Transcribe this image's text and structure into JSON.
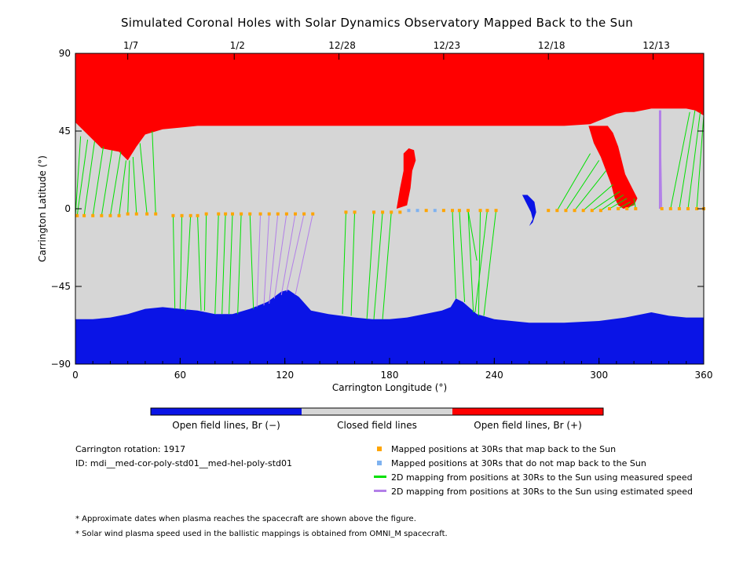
{
  "title": "Simulated Coronal Holes with Solar Dynamics Observatory Mapped Back to the Sun",
  "colors": {
    "open_negative": "#0a14e6",
    "closed": "#d6d6d6",
    "open_positive": "#ff0000",
    "mapped_ok": "#ffa500",
    "mapped_no": "#7fb2f0",
    "measured_line": "#00e000",
    "estimated_line": "#b27fe8"
  },
  "colorbar": {
    "labels": [
      "Open field lines, Br (−)",
      "Closed field lines",
      "Open field lines, Br (+)"
    ]
  },
  "info": {
    "rotation": "Carrington rotation: 1917",
    "id": "ID: mdi__med-cor-poly-std01__med-hel-poly-std01"
  },
  "legend": {
    "mapped_ok": "Mapped positions at 30Rs that map back to the Sun",
    "mapped_no": "Mapped positions at 30Rs that do not map back to the Sun",
    "measured": "2D mapping from positions at 30Rs to the Sun using measured speed",
    "estimated": "2D mapping from positions at 30Rs to the Sun using estimated speed"
  },
  "footnotes": [
    "* Approximate dates when plasma reaches the spacecraft are shown above the figure.",
    "* Solar wind plasma speed used in the ballistic mappings is obtained from OMNI_M spacecraft."
  ],
  "chart_data": {
    "type": "map",
    "xlabel": "Carrington Longitude (°)",
    "ylabel": "Carrington Latitude (°)",
    "xlim": [
      0,
      360
    ],
    "ylim": [
      -90,
      90
    ],
    "xticks": [
      0,
      60,
      120,
      180,
      240,
      300,
      360
    ],
    "yticks": [
      -90,
      -45,
      0,
      45,
      90
    ],
    "date_ticks": [
      {
        "lon": 30,
        "label": "1/7"
      },
      {
        "lon": 91,
        "label": "1/2"
      },
      {
        "lon": 151,
        "label": "12/28"
      },
      {
        "lon": 211,
        "label": "12/23"
      },
      {
        "lon": 271,
        "label": "12/18"
      },
      {
        "lon": 331,
        "label": "12/13"
      }
    ],
    "north_boundary": [
      [
        0,
        50
      ],
      [
        5,
        45
      ],
      [
        10,
        40
      ],
      [
        15,
        35
      ],
      [
        20,
        34
      ],
      [
        25,
        33
      ],
      [
        30,
        28
      ],
      [
        35,
        36
      ],
      [
        40,
        43
      ],
      [
        50,
        46
      ],
      [
        60,
        47
      ],
      [
        70,
        48
      ],
      [
        80,
        48
      ],
      [
        100,
        48
      ],
      [
        120,
        48
      ],
      [
        140,
        48
      ],
      [
        160,
        48
      ],
      [
        180,
        48
      ],
      [
        200,
        48
      ],
      [
        220,
        48
      ],
      [
        240,
        48
      ],
      [
        260,
        48
      ],
      [
        280,
        48
      ],
      [
        295,
        49
      ],
      [
        300,
        51
      ],
      [
        305,
        53
      ],
      [
        310,
        55
      ],
      [
        315,
        56
      ],
      [
        320,
        56
      ],
      [
        325,
        57
      ],
      [
        330,
        58
      ],
      [
        340,
        58
      ],
      [
        350,
        58
      ],
      [
        355,
        57
      ],
      [
        360,
        54
      ]
    ],
    "south_boundary": [
      [
        0,
        -64
      ],
      [
        10,
        -64
      ],
      [
        20,
        -63
      ],
      [
        30,
        -61
      ],
      [
        40,
        -58
      ],
      [
        50,
        -57
      ],
      [
        60,
        -58
      ],
      [
        70,
        -59
      ],
      [
        80,
        -61
      ],
      [
        90,
        -61
      ],
      [
        100,
        -58
      ],
      [
        110,
        -54
      ],
      [
        118,
        -48
      ],
      [
        122,
        -47
      ],
      [
        128,
        -51
      ],
      [
        135,
        -59
      ],
      [
        145,
        -61
      ],
      [
        160,
        -63
      ],
      [
        170,
        -64
      ],
      [
        180,
        -64
      ],
      [
        190,
        -63
      ],
      [
        200,
        -61
      ],
      [
        210,
        -59
      ],
      [
        215,
        -57
      ],
      [
        218,
        -52
      ],
      [
        222,
        -54
      ],
      [
        230,
        -61
      ],
      [
        240,
        -64
      ],
      [
        260,
        -66
      ],
      [
        280,
        -66
      ],
      [
        300,
        -65
      ],
      [
        315,
        -63
      ],
      [
        325,
        -61
      ],
      [
        330,
        -60
      ],
      [
        340,
        -62
      ],
      [
        350,
        -63
      ],
      [
        360,
        -63
      ]
    ],
    "open_positive_patches": [
      {
        "name": "cusp-180",
        "polygon": [
          [
            184,
            0
          ],
          [
            186,
            12
          ],
          [
            188,
            22
          ],
          [
            188,
            32
          ],
          [
            191,
            35
          ],
          [
            194,
            34
          ],
          [
            195,
            28
          ],
          [
            193,
            22
          ],
          [
            192,
            12
          ],
          [
            190,
            2
          ]
        ]
      },
      {
        "name": "tongue-300",
        "polygon": [
          [
            294,
            48
          ],
          [
            297,
            38
          ],
          [
            301,
            30
          ],
          [
            304,
            22
          ],
          [
            307,
            14
          ],
          [
            309,
            6
          ],
          [
            311,
            2
          ],
          [
            314,
            0
          ],
          [
            320,
            2
          ],
          [
            322,
            6
          ],
          [
            319,
            12
          ],
          [
            315,
            20
          ],
          [
            313,
            28
          ],
          [
            311,
            36
          ],
          [
            308,
            44
          ],
          [
            305,
            48
          ]
        ]
      }
    ],
    "open_negative_patches": [
      {
        "name": "sliver-257",
        "polygon": [
          [
            256,
            8
          ],
          [
            258,
            4
          ],
          [
            261,
            -2
          ],
          [
            262,
            -6
          ],
          [
            260,
            -10
          ],
          [
            258,
            -12
          ],
          [
            262,
            -8
          ],
          [
            264,
            -2
          ],
          [
            263,
            4
          ],
          [
            259,
            8
          ]
        ]
      }
    ],
    "mapped_points": [
      {
        "lon": 1,
        "lat": -4,
        "maps": true
      },
      {
        "lon": 5,
        "lat": -4,
        "maps": true
      },
      {
        "lon": 10,
        "lat": -4,
        "maps": true
      },
      {
        "lon": 15,
        "lat": -4,
        "maps": true
      },
      {
        "lon": 20,
        "lat": -4,
        "maps": true
      },
      {
        "lon": 25,
        "lat": -4,
        "maps": true
      },
      {
        "lon": 30,
        "lat": -3,
        "maps": true
      },
      {
        "lon": 35,
        "lat": -3,
        "maps": true
      },
      {
        "lon": 41,
        "lat": -3,
        "maps": true
      },
      {
        "lon": 46,
        "lat": -3,
        "maps": true
      },
      {
        "lon": 56,
        "lat": -4,
        "maps": true
      },
      {
        "lon": 61,
        "lat": -4,
        "maps": true
      },
      {
        "lon": 66,
        "lat": -4,
        "maps": true
      },
      {
        "lon": 70,
        "lat": -4,
        "maps": true
      },
      {
        "lon": 75,
        "lat": -3,
        "maps": true
      },
      {
        "lon": 82,
        "lat": -3,
        "maps": true
      },
      {
        "lon": 86,
        "lat": -3,
        "maps": true
      },
      {
        "lon": 90,
        "lat": -3,
        "maps": true
      },
      {
        "lon": 95,
        "lat": -3,
        "maps": true
      },
      {
        "lon": 100,
        "lat": -3,
        "maps": true
      },
      {
        "lon": 106,
        "lat": -3,
        "maps": true
      },
      {
        "lon": 111,
        "lat": -3,
        "maps": true
      },
      {
        "lon": 116,
        "lat": -3,
        "maps": true
      },
      {
        "lon": 121,
        "lat": -3,
        "maps": true
      },
      {
        "lon": 126,
        "lat": -3,
        "maps": true
      },
      {
        "lon": 131,
        "lat": -3,
        "maps": true
      },
      {
        "lon": 136,
        "lat": -3,
        "maps": true
      },
      {
        "lon": 155,
        "lat": -2,
        "maps": true
      },
      {
        "lon": 160,
        "lat": -2,
        "maps": true
      },
      {
        "lon": 171,
        "lat": -2,
        "maps": true
      },
      {
        "lon": 176,
        "lat": -2,
        "maps": true
      },
      {
        "lon": 181,
        "lat": -2,
        "maps": true
      },
      {
        "lon": 186,
        "lat": -2,
        "maps": true
      },
      {
        "lon": 191,
        "lat": -1,
        "maps": false
      },
      {
        "lon": 196,
        "lat": -1,
        "maps": false
      },
      {
        "lon": 201,
        "lat": -1,
        "maps": true
      },
      {
        "lon": 206,
        "lat": -1,
        "maps": false
      },
      {
        "lon": 211,
        "lat": -1,
        "maps": true
      },
      {
        "lon": 216,
        "lat": -1,
        "maps": true
      },
      {
        "lon": 220,
        "lat": -1,
        "maps": true
      },
      {
        "lon": 225,
        "lat": -1,
        "maps": true
      },
      {
        "lon": 232,
        "lat": -1,
        "maps": true
      },
      {
        "lon": 236,
        "lat": -1,
        "maps": true
      },
      {
        "lon": 241,
        "lat": -1,
        "maps": true
      },
      {
        "lon": 271,
        "lat": -1,
        "maps": true
      },
      {
        "lon": 276,
        "lat": -1,
        "maps": true
      },
      {
        "lon": 281,
        "lat": -1,
        "maps": true
      },
      {
        "lon": 286,
        "lat": -1,
        "maps": true
      },
      {
        "lon": 291,
        "lat": -1,
        "maps": true
      },
      {
        "lon": 296,
        "lat": -1,
        "maps": true
      },
      {
        "lon": 301,
        "lat": -1,
        "maps": true
      },
      {
        "lon": 306,
        "lat": 0,
        "maps": true
      },
      {
        "lon": 311,
        "lat": 0,
        "maps": true
      },
      {
        "lon": 316,
        "lat": 0,
        "maps": true
      },
      {
        "lon": 321,
        "lat": 0,
        "maps": true
      },
      {
        "lon": 336,
        "lat": 0,
        "maps": true
      },
      {
        "lon": 341,
        "lat": 0,
        "maps": true
      },
      {
        "lon": 346,
        "lat": 0,
        "maps": true
      },
      {
        "lon": 351,
        "lat": 0,
        "maps": true
      },
      {
        "lon": 356,
        "lat": 0,
        "maps": true
      },
      {
        "lon": 360,
        "lat": 0,
        "maps": true
      }
    ],
    "measured_mappings": [
      [
        0,
        -4,
        3,
        42
      ],
      [
        1,
        -4,
        7,
        40
      ],
      [
        5,
        -4,
        11,
        39
      ],
      [
        10,
        -4,
        16,
        36
      ],
      [
        15,
        -4,
        21,
        34
      ],
      [
        20,
        -4,
        26,
        33
      ],
      [
        25,
        -4,
        29,
        28
      ],
      [
        30,
        -3,
        31,
        28
      ],
      [
        35,
        -3,
        33,
        30
      ],
      [
        41,
        -3,
        37,
        38
      ],
      [
        46,
        -3,
        44,
        45
      ],
      [
        56,
        -4,
        57,
        -58
      ],
      [
        61,
        -4,
        60,
        -58
      ],
      [
        66,
        -4,
        63,
        -59
      ],
      [
        70,
        -4,
        72,
        -59
      ],
      [
        75,
        -3,
        74,
        -59
      ],
      [
        82,
        -3,
        80,
        -61
      ],
      [
        86,
        -3,
        84,
        -61
      ],
      [
        90,
        -3,
        88,
        -61
      ],
      [
        95,
        -3,
        93,
        -61
      ],
      [
        100,
        -3,
        102,
        -58
      ],
      [
        155,
        -2,
        153,
        -61
      ],
      [
        160,
        -2,
        158,
        -62
      ],
      [
        171,
        -2,
        167,
        -64
      ],
      [
        176,
        -2,
        171,
        -64
      ],
      [
        181,
        -2,
        176,
        -64
      ],
      [
        216,
        -1,
        218,
        -52
      ],
      [
        220,
        -1,
        223,
        -54
      ],
      [
        225,
        -1,
        228,
        -60
      ],
      [
        232,
        -1,
        231,
        -62
      ],
      [
        236,
        -1,
        229,
        -60
      ],
      [
        225,
        -1,
        230,
        -30
      ],
      [
        241,
        -1,
        234,
        -62
      ],
      [
        276,
        -1,
        295,
        32
      ],
      [
        281,
        -1,
        300,
        28
      ],
      [
        286,
        -1,
        304,
        22
      ],
      [
        291,
        -1,
        308,
        14
      ],
      [
        296,
        -1,
        312,
        10
      ],
      [
        301,
        -1,
        314,
        8
      ],
      [
        306,
        0,
        316,
        6
      ],
      [
        311,
        0,
        318,
        4
      ],
      [
        316,
        0,
        320,
        3
      ],
      [
        321,
        0,
        320,
        6
      ],
      [
        341,
        0,
        352,
        56
      ],
      [
        346,
        0,
        355,
        57
      ],
      [
        351,
        0,
        358,
        56
      ],
      [
        356,
        0,
        360,
        54
      ]
    ],
    "estimated_mappings": [
      [
        106,
        -3,
        104,
        -57
      ],
      [
        111,
        -3,
        108,
        -56
      ],
      [
        116,
        -3,
        111,
        -55
      ],
      [
        121,
        -3,
        114,
        -52
      ],
      [
        126,
        -3,
        118,
        -50
      ],
      [
        131,
        -3,
        121,
        -48
      ],
      [
        136,
        -3,
        126,
        -50
      ],
      [
        336,
        0,
        335,
        57
      ]
    ]
  }
}
